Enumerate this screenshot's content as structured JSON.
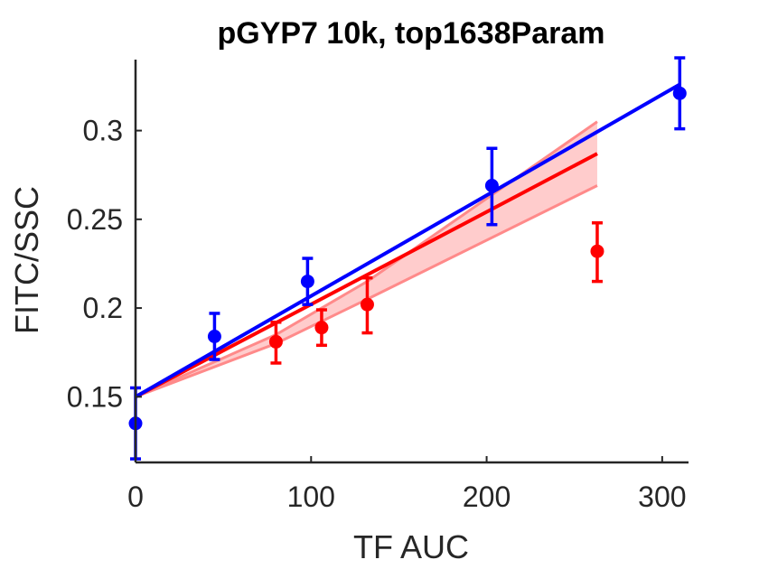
{
  "chart_data": {
    "type": "scatter",
    "title": "pGYP7 10k, top1638Param",
    "xlabel": "TF AUC",
    "ylabel": "FITC/SSC",
    "xlim": [
      0,
      315
    ],
    "ylim": [
      0.113,
      0.34
    ],
    "xticks": [
      0,
      100,
      200,
      300
    ],
    "xtick_labels": [
      "0",
      "100",
      "200",
      "300"
    ],
    "yticks": [
      0.15,
      0.2,
      0.25,
      0.3
    ],
    "ytick_labels": [
      "0.15",
      "0.2",
      "0.25",
      "0.3"
    ],
    "grid": false,
    "series": [
      {
        "color": "#0000ff",
        "points": [
          {
            "x": 0,
            "y": 0.135,
            "lo": 0.115,
            "hi": 0.155
          },
          {
            "x": 45,
            "y": 0.184,
            "lo": 0.171,
            "hi": 0.197
          },
          {
            "x": 98,
            "y": 0.215,
            "lo": 0.202,
            "hi": 0.228
          },
          {
            "x": 203,
            "y": 0.269,
            "lo": 0.247,
            "hi": 0.29
          },
          {
            "x": 310,
            "y": 0.321,
            "lo": 0.301,
            "hi": 0.341
          }
        ],
        "fit": {
          "x": [
            0,
            310
          ],
          "y": [
            0.15,
            0.326
          ]
        }
      },
      {
        "color": "#ff0000",
        "points": [
          {
            "x": 80,
            "y": 0.181,
            "lo": 0.169,
            "hi": 0.192
          },
          {
            "x": 106,
            "y": 0.189,
            "lo": 0.179,
            "hi": 0.199
          },
          {
            "x": 132,
            "y": 0.202,
            "lo": 0.186,
            "hi": 0.217
          },
          {
            "x": 263,
            "y": 0.232,
            "lo": 0.215,
            "hi": 0.248
          }
        ],
        "fit": {
          "x": [
            0,
            263
          ],
          "y": [
            0.15,
            0.287
          ]
        },
        "band": {
          "x": [
            0,
            80,
            132,
            263
          ],
          "lower": [
            0.15,
            0.18,
            0.205,
            0.269
          ],
          "upper": [
            0.15,
            0.185,
            0.215,
            0.305
          ]
        }
      }
    ]
  }
}
